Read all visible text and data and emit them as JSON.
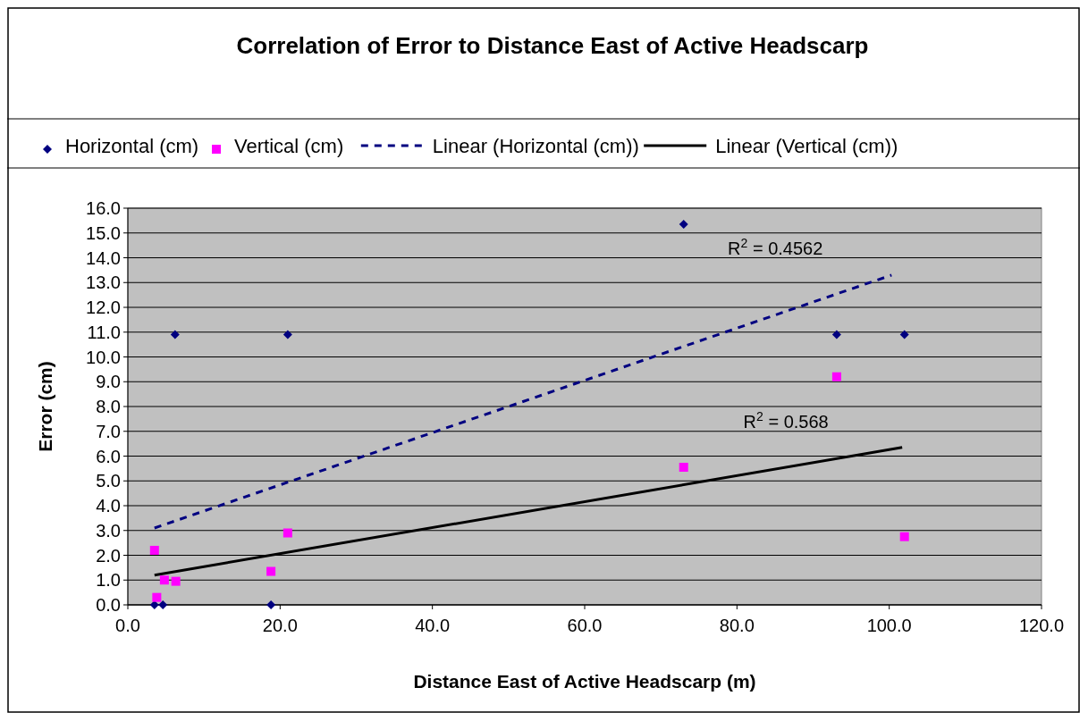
{
  "chart_data": {
    "type": "scatter",
    "title": "Correlation of Error to Distance East of Active Headscarp",
    "xlabel": "Distance East of Active Headscarp (m)",
    "ylabel": "Error (cm)",
    "xlim": [
      0,
      120
    ],
    "xticks": [
      {
        "value": 0,
        "label": "0.0"
      },
      {
        "value": 20,
        "label": "20.0"
      },
      {
        "value": 40,
        "label": "40.0"
      },
      {
        "value": 60,
        "label": "60.0"
      },
      {
        "value": 80,
        "label": "80.0"
      },
      {
        "value": 100,
        "label": "100.0"
      },
      {
        "value": 120,
        "label": "120.0"
      }
    ],
    "ylim": [
      0,
      16
    ],
    "yticks": [
      {
        "value": 0,
        "label": "0.0"
      },
      {
        "value": 1,
        "label": "1.0"
      },
      {
        "value": 2,
        "label": "2.0"
      },
      {
        "value": 3,
        "label": "3.0"
      },
      {
        "value": 4,
        "label": "4.0"
      },
      {
        "value": 5,
        "label": "5.0"
      },
      {
        "value": 6,
        "label": "6.0"
      },
      {
        "value": 7,
        "label": "7.0"
      },
      {
        "value": 8,
        "label": "8.0"
      },
      {
        "value": 9,
        "label": "9.0"
      },
      {
        "value": 10,
        "label": "10.0"
      },
      {
        "value": 11,
        "label": "11.0"
      },
      {
        "value": 12,
        "label": "12.0"
      },
      {
        "value": 13,
        "label": "13.0"
      },
      {
        "value": 14,
        "label": "14.0"
      },
      {
        "value": 15,
        "label": "15.0"
      },
      {
        "value": 16,
        "label": "16.0"
      }
    ],
    "grid": "y",
    "legend": "top",
    "series": [
      {
        "name": "Horizontal (cm)",
        "marker": "diamond",
        "color": "#000080",
        "x": [
          3.5,
          4.6,
          6.2,
          21.0,
          18.8,
          73.0,
          93.1,
          102.0
        ],
        "values": [
          0,
          0,
          10.9,
          10.9,
          0,
          15.35,
          10.9,
          10.9
        ]
      },
      {
        "name": "Vertical (cm)",
        "marker": "square",
        "color": "#ff00ff",
        "x": [
          3.5,
          3.8,
          4.8,
          6.3,
          18.8,
          21.0,
          73.0,
          93.1,
          102.0
        ],
        "values": [
          2.2,
          0.3,
          1.0,
          0.95,
          1.35,
          2.9,
          5.55,
          9.2,
          2.75
        ]
      },
      {
        "name": "Linear (Horizontal (cm))",
        "type": "line",
        "line_style": "dashed",
        "color": "#000080",
        "x": [
          3.5,
          100.3
        ],
        "values": [
          3.1,
          13.3
        ]
      },
      {
        "name": "Linear (Vertical (cm))",
        "type": "line",
        "line_style": "solid",
        "color": "#000000",
        "x": [
          3.5,
          101.7
        ],
        "values": [
          1.2,
          6.35
        ]
      }
    ],
    "annotations": [
      "R$^{2}$ = 0.4562",
      "R$^{2}$ = 0.568"
    ]
  }
}
